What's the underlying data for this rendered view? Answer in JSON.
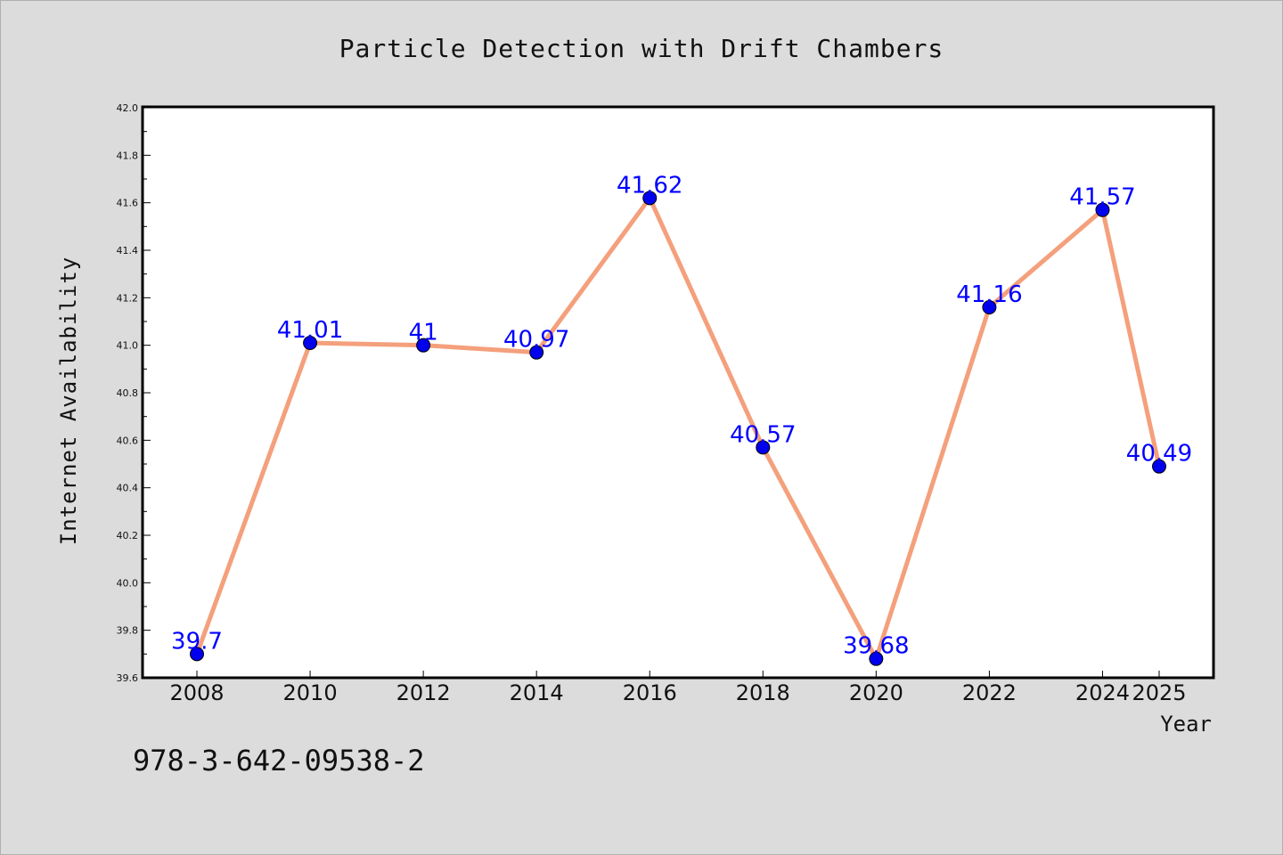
{
  "chart_data": {
    "type": "line",
    "title": "Particle Detection with Drift Chambers",
    "xlabel": "Year",
    "ylabel": "Internet Availability",
    "x": [
      "2008",
      "2010",
      "2012",
      "2014",
      "2016",
      "2018",
      "2020",
      "2022",
      "2024",
      "2025"
    ],
    "series": [
      {
        "values": [
          39.7,
          41.01,
          41.0,
          40.97,
          41.62,
          40.57,
          39.68,
          41.16,
          41.57,
          40.49
        ],
        "labels": [
          "39.7",
          "41.01",
          "41",
          "40.97",
          "41.62",
          "40.57",
          "39.68",
          "41.16",
          "41.57",
          "40.49"
        ]
      }
    ],
    "ylim": [
      39.6,
      42.0
    ],
    "yticks": [
      "39.6",
      "39.8",
      "40.0",
      "40.2",
      "40.4",
      "40.6",
      "40.8",
      "41.0",
      "41.2",
      "41.4",
      "41.6",
      "41.8",
      "42.0"
    ],
    "grid": false,
    "colors": {
      "line": "#f4a07c",
      "marker": "#0000ee",
      "label": "#0000ff"
    }
  },
  "footer": {
    "isbn": "978-3-642-09538-2"
  }
}
